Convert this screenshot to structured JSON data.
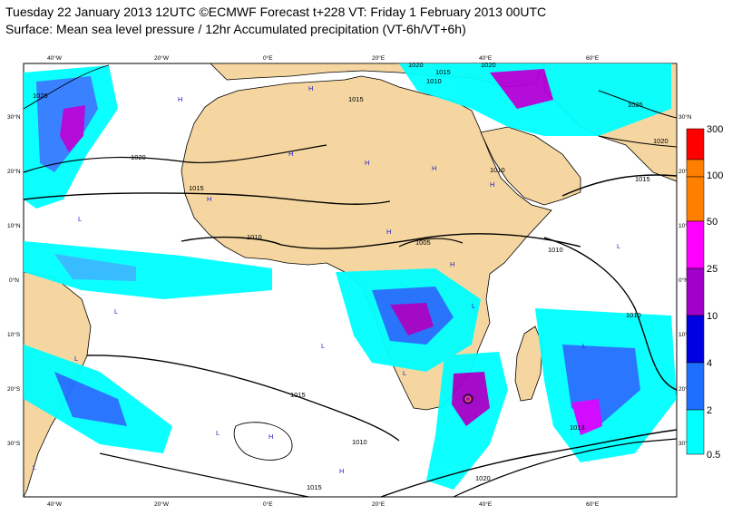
{
  "header": {
    "line1": "Tuesday 22 January 2013 12UTC ©ECMWF Forecast t+228 VT: Friday 1 February 2013 00UTC",
    "line2": "Surface: Mean sea level pressure / 12hr Accumulated precipitation (VT-6h/VT+6h)"
  },
  "map": {
    "lon_labels": [
      "40°W",
      "20°W",
      "0°E",
      "20°E",
      "40°E",
      "60°E"
    ],
    "lat_labels_left": [
      "30°N",
      "20°N",
      "10°N",
      "0°N",
      "10°S",
      "20°S",
      "30°S"
    ],
    "lat_labels_right": [
      "30°N",
      "20°N",
      "10°N",
      "0°N",
      "10°S",
      "20°S",
      "30°S"
    ],
    "isobar_labels": [
      "1025",
      "1020",
      "1015",
      "1010",
      "1005",
      "1015",
      "1020",
      "1010",
      "1015",
      "1010",
      "1010",
      "1015",
      "1020",
      "1010",
      "1015",
      "1013",
      "1015",
      "1020",
      "1020",
      "1025",
      "1010",
      "1010",
      "1010",
      "1025",
      "1020",
      "1015",
      "1010",
      "1015"
    ],
    "pressure_marks": [
      "H",
      "H",
      "H",
      "H",
      "H",
      "H",
      "H",
      "H",
      "H",
      "L",
      "L",
      "L",
      "L",
      "L",
      "L",
      "L",
      "L",
      "H",
      "H",
      "L",
      "L"
    ]
  },
  "legend": {
    "levels": [
      "300",
      "100",
      "50",
      "25",
      "10",
      "4",
      "2",
      "0.5"
    ],
    "colors": [
      "#ff0000",
      "#ff7f00",
      "#ff00ff",
      "#a000c8",
      "#0000e0",
      "#1f6fff",
      "#00c0ff",
      "#00ffff"
    ]
  },
  "colors": {
    "land": "#f5d6a0",
    "ocean": "#ffffff",
    "coast": "#000000",
    "precip_light": "#00ffff",
    "precip_mid": "#00a0ff",
    "precip_heavy": "#0000e0",
    "precip_extreme": "#d000ff"
  }
}
